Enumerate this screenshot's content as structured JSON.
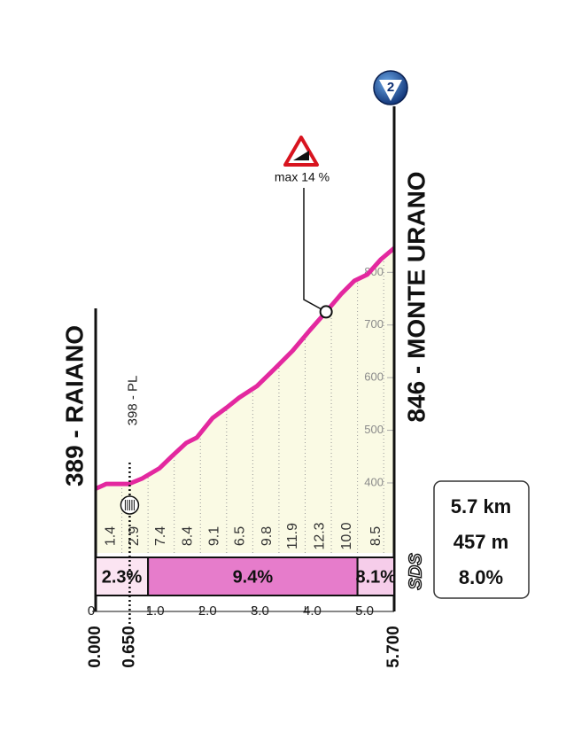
{
  "chart_data": {
    "type": "area",
    "start": "389 - RAIANO",
    "finish": "846 - MONTE URANO",
    "climb_number": "2",
    "x": [
      0,
      0.2,
      0.63,
      0.88,
      1.22,
      1.47,
      1.73,
      1.93,
      2.23,
      2.5,
      2.74,
      3.08,
      3.42,
      3.76,
      4.09,
      4.4,
      4.69,
      4.94,
      5.19,
      5.45,
      5.7
    ],
    "values": [
      389,
      398,
      398,
      408,
      428,
      452,
      476,
      486,
      523,
      543,
      562,
      584,
      617,
      651,
      690,
      725,
      759,
      784,
      796,
      825,
      846
    ],
    "color": "#e3289f",
    "fill": "#fafae4",
    "xlim": [
      0,
      5.7
    ],
    "xticks": [
      0,
      {
        "value": 1,
        "label": "1.0"
      },
      {
        "value": 2,
        "label": "2.0"
      },
      {
        "value": 3,
        "label": "3.0"
      },
      {
        "value": 4,
        "label": "4.0"
      },
      {
        "value": 5,
        "label": "5.0"
      }
    ],
    "distance_marks": [
      {
        "value": 0,
        "label": "0.000"
      },
      {
        "value": 0.65,
        "label": "0.650"
      },
      {
        "value": 5.7,
        "label": "5.700"
      }
    ],
    "ylim": [
      267,
      846
    ],
    "yticks": [
      400,
      500,
      600,
      700,
      800
    ],
    "intermediate": {
      "label": "398 - PL",
      "x": 0.65
    },
    "max_gradient": {
      "label": "max 14 %",
      "x": 4.4,
      "y": 725
    },
    "gradients": {
      "x": [
        0.29,
        0.74,
        1.25,
        1.76,
        2.27,
        2.76,
        3.28,
        3.77,
        4.28,
        4.8,
        5.36
      ],
      "values": [
        1.4,
        2.9,
        7.4,
        8.4,
        9.1,
        6.5,
        9.8,
        11.9,
        12.3,
        10.0,
        8.5
      ],
      "value_labels": [
        "1.4",
        "2.9",
        "7.4",
        "8.4",
        "9.1",
        "6.5",
        "9.8",
        "11.9",
        "12.3",
        "10.0",
        "8.5"
      ]
    },
    "sections": [
      {
        "from": 0,
        "to": 1,
        "value": 2.3,
        "label": "2.3%",
        "color": "#fbe4f2"
      },
      {
        "from": 1,
        "to": 5,
        "value": 9.4,
        "label": "9.4%",
        "color": "#e67ccb"
      },
      {
        "from": 5,
        "to": 5.7,
        "value": 8.1,
        "label": "8.1%",
        "color": "#f6cdea"
      }
    ],
    "summary": [
      "5.7 km",
      "457 m",
      "8.0%"
    ],
    "logo": "SDS"
  }
}
